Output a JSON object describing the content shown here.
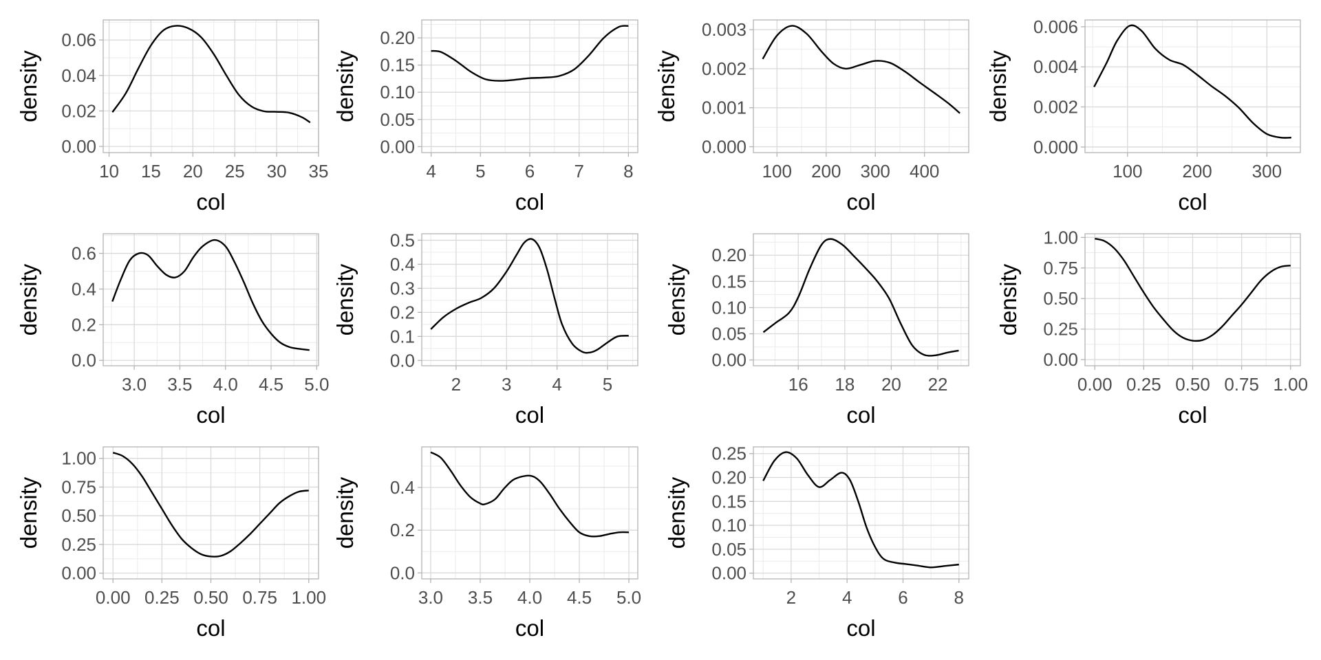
{
  "chart_data": [
    {
      "type": "line",
      "title": "",
      "xlabel": "col",
      "ylabel": "density",
      "xlim": [
        9.3,
        35.0
      ],
      "ylim": [
        -0.0035,
        0.0713
      ],
      "xticks": [
        10,
        15,
        20,
        25,
        30,
        35
      ],
      "xtick_labels": [
        "10",
        "15",
        "20",
        "25",
        "30",
        "35"
      ],
      "yticks": [
        0,
        0.02,
        0.04,
        0.06
      ],
      "ytick_labels": [
        "0.00",
        "0.02",
        "0.04",
        "0.06"
      ],
      "grid": true,
      "x": [
        10.4,
        12,
        13.5,
        15,
        16.5,
        18,
        19.5,
        21,
        22.5,
        24,
        25.5,
        27,
        28.5,
        30,
        31.5,
        33,
        34
      ],
      "y": [
        0.0193,
        0.03,
        0.044,
        0.057,
        0.0655,
        0.068,
        0.0665,
        0.0615,
        0.052,
        0.04,
        0.029,
        0.0225,
        0.0198,
        0.0195,
        0.019,
        0.0165,
        0.0135
      ]
    },
    {
      "type": "line",
      "title": "",
      "xlabel": "col",
      "ylabel": "density",
      "xlim": [
        3.81,
        8.19
      ],
      "ylim": [
        -0.011,
        0.233
      ],
      "xticks": [
        4,
        5,
        6,
        7,
        8
      ],
      "xtick_labels": [
        "4",
        "5",
        "6",
        "7",
        "8"
      ],
      "yticks": [
        0,
        0.05,
        0.1,
        0.15,
        0.2
      ],
      "ytick_labels": [
        "0.00",
        "0.05",
        "0.10",
        "0.15",
        "0.20"
      ],
      "grid": true,
      "x": [
        4.0,
        4.2,
        4.5,
        4.8,
        5.1,
        5.4,
        5.7,
        6.0,
        6.3,
        6.6,
        6.9,
        7.2,
        7.5,
        7.8,
        8.0
      ],
      "y": [
        0.176,
        0.174,
        0.158,
        0.138,
        0.124,
        0.121,
        0.123,
        0.126,
        0.127,
        0.13,
        0.142,
        0.168,
        0.2,
        0.22,
        0.222
      ]
    },
    {
      "type": "line",
      "title": "",
      "xlabel": "col",
      "ylabel": "density",
      "xlim": [
        52,
        490
      ],
      "ylim": [
        -0.00015,
        0.00325
      ],
      "xticks": [
        100,
        200,
        300,
        400
      ],
      "xtick_labels": [
        "100",
        "200",
        "300",
        "400"
      ],
      "yticks": [
        0,
        0.001,
        0.002,
        0.003
      ],
      "ytick_labels": [
        "0.000",
        "0.001",
        "0.002",
        "0.003"
      ],
      "grid": true,
      "x": [
        71,
        100,
        130,
        160,
        190,
        215,
        240,
        270,
        300,
        330,
        360,
        390,
        420,
        450,
        472
      ],
      "y": [
        0.00225,
        0.00285,
        0.0031,
        0.0029,
        0.00245,
        0.00213,
        0.002,
        0.0021,
        0.0022,
        0.00215,
        0.00193,
        0.00165,
        0.00138,
        0.0011,
        0.00086
      ]
    },
    {
      "type": "line",
      "title": "",
      "xlabel": "col",
      "ylabel": "density",
      "xlim": [
        39,
        348
      ],
      "ylim": [
        -0.00028,
        0.00634
      ],
      "xticks": [
        100,
        200,
        300
      ],
      "xtick_labels": [
        "100",
        "200",
        "300"
      ],
      "yticks": [
        0,
        0.002,
        0.004,
        0.006
      ],
      "ytick_labels": [
        "0.000",
        "0.002",
        "0.004",
        "0.006"
      ],
      "grid": true,
      "x": [
        52,
        70,
        85,
        103,
        120,
        140,
        160,
        180,
        200,
        220,
        240,
        260,
        280,
        300,
        320,
        335
      ],
      "y": [
        0.003,
        0.0042,
        0.0053,
        0.00605,
        0.0058,
        0.0049,
        0.00435,
        0.0041,
        0.0036,
        0.00305,
        0.00255,
        0.00195,
        0.0012,
        0.00065,
        0.00047,
        0.00047
      ]
    },
    {
      "type": "line",
      "title": "",
      "xlabel": "col",
      "ylabel": "density",
      "xlim": [
        2.66,
        5.02
      ],
      "ylim": [
        -0.03,
        0.71
      ],
      "xticks": [
        3.0,
        3.5,
        4.0,
        4.5,
        5.0
      ],
      "xtick_labels": [
        "3.0",
        "3.5",
        "4.0",
        "4.5",
        "5.0"
      ],
      "yticks": [
        0,
        0.2,
        0.4,
        0.6
      ],
      "ytick_labels": [
        "0.0",
        "0.2",
        "0.4",
        "0.6"
      ],
      "grid": true,
      "x": [
        2.76,
        2.85,
        2.95,
        3.05,
        3.15,
        3.25,
        3.35,
        3.45,
        3.55,
        3.65,
        3.75,
        3.88,
        4.0,
        4.1,
        4.2,
        4.3,
        4.4,
        4.5,
        4.6,
        4.7,
        4.8,
        4.92
      ],
      "y": [
        0.33,
        0.45,
        0.56,
        0.6,
        0.59,
        0.53,
        0.48,
        0.465,
        0.5,
        0.58,
        0.64,
        0.675,
        0.64,
        0.55,
        0.44,
        0.32,
        0.22,
        0.15,
        0.1,
        0.075,
        0.065,
        0.058
      ]
    },
    {
      "type": "line",
      "title": "",
      "xlabel": "col",
      "ylabel": "density",
      "xlim": [
        1.32,
        5.6
      ],
      "ylim": [
        -0.022,
        0.527
      ],
      "xticks": [
        2,
        3,
        4,
        5
      ],
      "xtick_labels": [
        "2",
        "3",
        "4",
        "5"
      ],
      "yticks": [
        0,
        0.1,
        0.2,
        0.3,
        0.4,
        0.5
      ],
      "ytick_labels": [
        "0.0",
        "0.1",
        "0.2",
        "0.3",
        "0.4",
        "0.5"
      ],
      "grid": true,
      "x": [
        1.5,
        1.75,
        2.0,
        2.25,
        2.5,
        2.75,
        3.0,
        3.2,
        3.35,
        3.5,
        3.65,
        3.8,
        3.95,
        4.1,
        4.3,
        4.5,
        4.65,
        4.8,
        5.0,
        5.2,
        5.42
      ],
      "y": [
        0.13,
        0.18,
        0.215,
        0.24,
        0.26,
        0.3,
        0.37,
        0.44,
        0.49,
        0.505,
        0.47,
        0.38,
        0.26,
        0.15,
        0.07,
        0.036,
        0.033,
        0.045,
        0.075,
        0.1,
        0.103
      ]
    },
    {
      "type": "line",
      "title": "",
      "xlabel": "col",
      "ylabel": "density",
      "xlim": [
        14.07,
        23.33
      ],
      "ylim": [
        -0.011,
        0.241
      ],
      "xticks": [
        16,
        18,
        20,
        22
      ],
      "xtick_labels": [
        "16",
        "18",
        "20",
        "22"
      ],
      "yticks": [
        0,
        0.05,
        0.1,
        0.15,
        0.2
      ],
      "ytick_labels": [
        "0.00",
        "0.05",
        "0.10",
        "0.15",
        "0.20"
      ],
      "grid": true,
      "x": [
        14.5,
        15.0,
        15.6,
        16.0,
        16.5,
        17.0,
        17.4,
        17.9,
        18.4,
        18.9,
        19.4,
        19.9,
        20.4,
        20.9,
        21.4,
        21.9,
        22.4,
        22.9
      ],
      "y": [
        0.053,
        0.07,
        0.09,
        0.12,
        0.175,
        0.22,
        0.231,
        0.22,
        0.198,
        0.175,
        0.15,
        0.118,
        0.07,
        0.028,
        0.01,
        0.009,
        0.014,
        0.018
      ]
    },
    {
      "type": "line",
      "title": "",
      "xlabel": "col",
      "ylabel": "density",
      "xlim": [
        -0.05,
        1.05
      ],
      "ylim": [
        -0.05,
        1.03
      ],
      "xticks": [
        0,
        0.25,
        0.5,
        0.75,
        1.0
      ],
      "xtick_labels": [
        "0.00",
        "0.25",
        "0.50",
        "0.75",
        "1.00"
      ],
      "yticks": [
        0,
        0.25,
        0.5,
        0.75,
        1.0
      ],
      "ytick_labels": [
        "0.00",
        "0.25",
        "0.50",
        "0.75",
        "1.00"
      ],
      "grid": true,
      "x": [
        0.0,
        0.05,
        0.1,
        0.15,
        0.2,
        0.25,
        0.3,
        0.35,
        0.4,
        0.45,
        0.5,
        0.55,
        0.6,
        0.65,
        0.7,
        0.75,
        0.8,
        0.85,
        0.9,
        0.95,
        1.0
      ],
      "y": [
        0.99,
        0.97,
        0.91,
        0.81,
        0.68,
        0.55,
        0.43,
        0.33,
        0.24,
        0.18,
        0.155,
        0.16,
        0.2,
        0.27,
        0.36,
        0.45,
        0.55,
        0.65,
        0.72,
        0.76,
        0.77
      ]
    },
    {
      "type": "line",
      "title": "",
      "xlabel": "col",
      "ylabel": "density",
      "xlim": [
        -0.05,
        1.05
      ],
      "ylim": [
        -0.05,
        1.1
      ],
      "xticks": [
        0,
        0.25,
        0.5,
        0.75,
        1.0
      ],
      "xtick_labels": [
        "0.00",
        "0.25",
        "0.50",
        "0.75",
        "1.00"
      ],
      "yticks": [
        0,
        0.25,
        0.5,
        0.75,
        1.0
      ],
      "ytick_labels": [
        "0.00",
        "0.25",
        "0.50",
        "0.75",
        "1.00"
      ],
      "grid": true,
      "x": [
        0.0,
        0.05,
        0.1,
        0.15,
        0.2,
        0.25,
        0.3,
        0.35,
        0.4,
        0.45,
        0.5,
        0.55,
        0.6,
        0.65,
        0.7,
        0.75,
        0.8,
        0.85,
        0.9,
        0.95,
        1.0
      ],
      "y": [
        1.05,
        1.02,
        0.95,
        0.84,
        0.7,
        0.56,
        0.42,
        0.3,
        0.22,
        0.165,
        0.145,
        0.15,
        0.19,
        0.26,
        0.34,
        0.43,
        0.52,
        0.61,
        0.67,
        0.71,
        0.72
      ]
    },
    {
      "type": "line",
      "title": "",
      "xlabel": "col",
      "ylabel": "density",
      "xlim": [
        2.91,
        5.09
      ],
      "ylim": [
        -0.028,
        0.59
      ],
      "xticks": [
        3.0,
        3.5,
        4.0,
        4.5,
        5.0
      ],
      "xtick_labels": [
        "3.0",
        "3.5",
        "4.0",
        "4.5",
        "5.0"
      ],
      "yticks": [
        0,
        0.2,
        0.4
      ],
      "ytick_labels": [
        "0.0",
        "0.2",
        "0.4"
      ],
      "grid": true,
      "x": [
        3.0,
        3.1,
        3.2,
        3.3,
        3.4,
        3.5,
        3.55,
        3.65,
        3.75,
        3.85,
        4.0,
        4.1,
        4.2,
        4.3,
        4.4,
        4.5,
        4.6,
        4.7,
        4.8,
        4.9,
        5.0
      ],
      "y": [
        0.565,
        0.54,
        0.48,
        0.41,
        0.355,
        0.325,
        0.322,
        0.345,
        0.4,
        0.44,
        0.455,
        0.43,
        0.37,
        0.3,
        0.24,
        0.19,
        0.172,
        0.172,
        0.182,
        0.19,
        0.19
      ]
    },
    {
      "type": "line",
      "title": "",
      "xlabel": "col",
      "ylabel": "density",
      "xlim": [
        0.65,
        8.35
      ],
      "ylim": [
        -0.012,
        0.264
      ],
      "xticks": [
        2,
        4,
        6,
        8
      ],
      "xtick_labels": [
        "2",
        "4",
        "6",
        "8"
      ],
      "yticks": [
        0,
        0.05,
        0.1,
        0.15,
        0.2,
        0.25
      ],
      "ytick_labels": [
        "0.00",
        "0.05",
        "0.10",
        "0.15",
        "0.20",
        "0.25"
      ],
      "grid": true,
      "x": [
        1.0,
        1.4,
        1.8,
        2.2,
        2.6,
        3.0,
        3.4,
        3.8,
        4.1,
        4.4,
        4.7,
        5.0,
        5.3,
        5.7,
        6.1,
        6.5,
        7.0,
        7.5,
        8.0
      ],
      "y": [
        0.193,
        0.235,
        0.253,
        0.24,
        0.205,
        0.18,
        0.195,
        0.21,
        0.195,
        0.15,
        0.095,
        0.055,
        0.03,
        0.022,
        0.019,
        0.016,
        0.012,
        0.015,
        0.018
      ]
    }
  ]
}
